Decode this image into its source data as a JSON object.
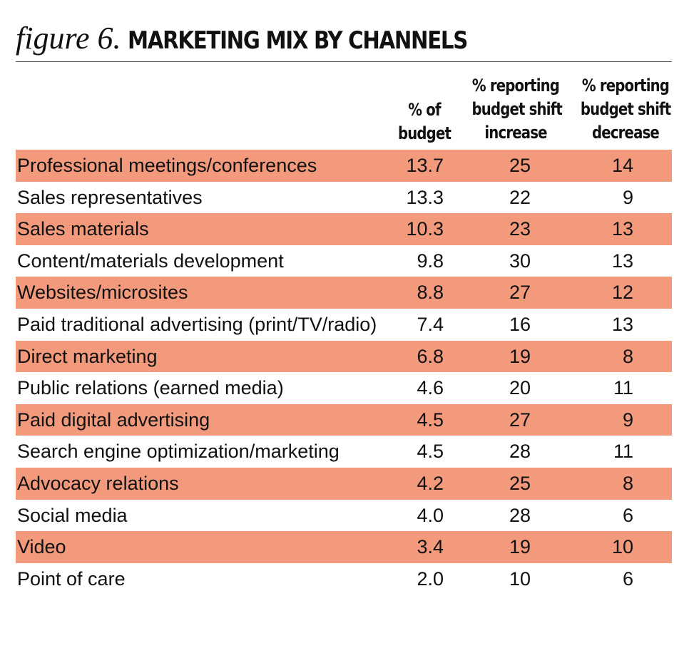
{
  "header": {
    "figure_label": "figure 6.",
    "title": "MARKETING MIX BY CHANNELS"
  },
  "columns": {
    "budget": [
      "% of",
      "budget"
    ],
    "increase": [
      "% reporting",
      "budget shift",
      "increase"
    ],
    "decrease": [
      "% reporting",
      "budget shift",
      "decrease"
    ]
  },
  "colors": {
    "row_shade": "#f49a7c",
    "text": "#111111"
  },
  "chart_data": {
    "type": "table",
    "title": "MARKETING MIX BY CHANNELS",
    "columns": [
      "% of budget",
      "% reporting budget shift increase",
      "% reporting budget shift decrease"
    ],
    "rows": [
      {
        "channel": "Professional meetings/conferences",
        "budget": "13.7",
        "increase": "25",
        "decrease": "14"
      },
      {
        "channel": "Sales representatives",
        "budget": "13.3",
        "increase": "22",
        "decrease": "9"
      },
      {
        "channel": "Sales materials",
        "budget": "10.3",
        "increase": "23",
        "decrease": "13"
      },
      {
        "channel": "Content/materials development",
        "budget": "9.8",
        "increase": "30",
        "decrease": "13"
      },
      {
        "channel": "Websites/microsites",
        "budget": "8.8",
        "increase": "27",
        "decrease": "12"
      },
      {
        "channel": "Paid traditional advertising (print/TV/radio)",
        "budget": "7.4",
        "increase": "16",
        "decrease": "13"
      },
      {
        "channel": "Direct marketing",
        "budget": "6.8",
        "increase": "19",
        "decrease": "8"
      },
      {
        "channel": "Public relations (earned media)",
        "budget": "4.6",
        "increase": "20",
        "decrease": "11"
      },
      {
        "channel": "Paid digital advertising",
        "budget": "4.5",
        "increase": "27",
        "decrease": "9"
      },
      {
        "channel": "Search engine optimization/marketing",
        "budget": "4.5",
        "increase": "28",
        "decrease": "11"
      },
      {
        "channel": "Advocacy relations",
        "budget": "4.2",
        "increase": "25",
        "decrease": "8"
      },
      {
        "channel": "Social media",
        "budget": "4.0",
        "increase": "28",
        "decrease": "6"
      },
      {
        "channel": "Video",
        "budget": "3.4",
        "increase": "19",
        "decrease": "10"
      },
      {
        "channel": "Point of care",
        "budget": "2.0",
        "increase": "10",
        "decrease": "6"
      }
    ]
  }
}
